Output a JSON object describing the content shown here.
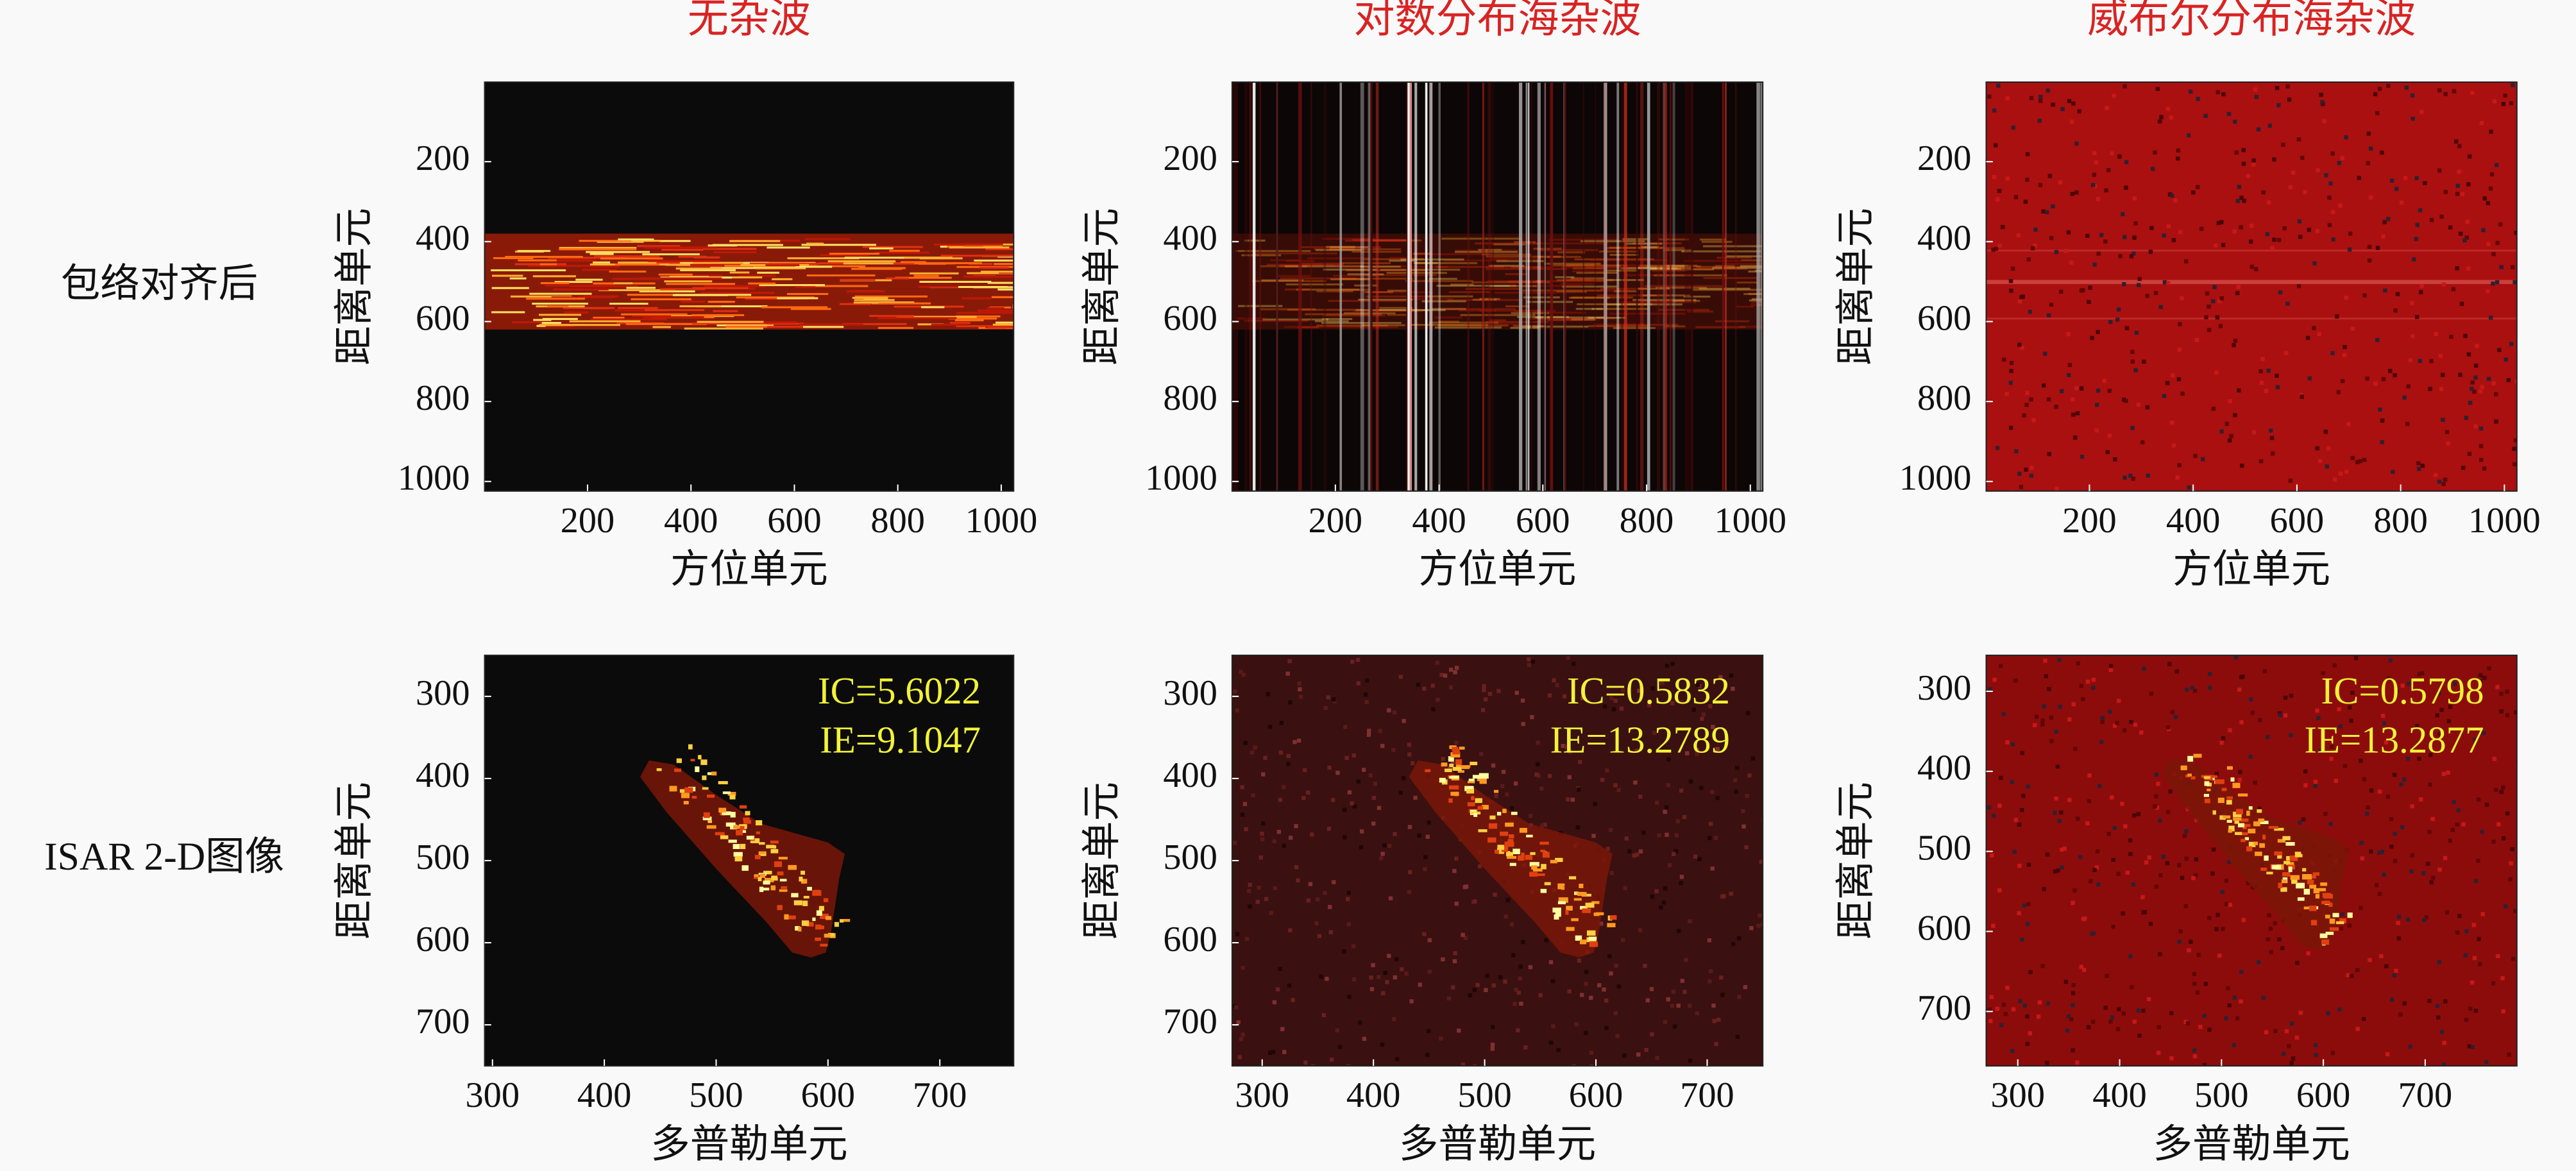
{
  "row_labels": [
    "包络对齐后",
    "ISAR 2-D图像"
  ],
  "title_color": "#d92323",
  "chart_data": [
    {
      "type": "heatmap",
      "title": "无杂波",
      "xlabel": "方位单元",
      "ylabel": "距离单元",
      "xlim": [
        1,
        1024
      ],
      "ylim": [
        1024,
        1
      ],
      "xticks": [
        200,
        400,
        600,
        800,
        1000
      ],
      "yticks": [
        200,
        400,
        600,
        800,
        1000
      ],
      "background": "#0b0b0b"
    },
    {
      "type": "heatmap",
      "title": "对数分布海杂波",
      "xlabel": "方位单元",
      "ylabel": "距离单元",
      "xlim": [
        1,
        1024
      ],
      "ylim": [
        1024,
        1
      ],
      "xticks": [
        200,
        400,
        600,
        800,
        1000
      ],
      "yticks": [
        200,
        400,
        600,
        800,
        1000
      ],
      "background": "#0c0606"
    },
    {
      "type": "heatmap",
      "title": "威布尔分布海杂波",
      "xlabel": "方位单元",
      "ylabel": "距离单元",
      "xlim": [
        1,
        1024
      ],
      "ylim": [
        1024,
        1
      ],
      "xticks": [
        200,
        400,
        600,
        800,
        1000
      ],
      "yticks": [
        200,
        400,
        600,
        800,
        1000
      ],
      "background": "#aa1010"
    },
    {
      "type": "heatmap",
      "xlabel": "多普勒单元",
      "ylabel": "距离单元",
      "xlim": [
        293,
        766
      ],
      "ylim": [
        750,
        250
      ],
      "xticks": [
        300,
        400,
        500,
        600,
        700
      ],
      "yticks": [
        300,
        400,
        500,
        600,
        700
      ],
      "annotations": [
        "IC=5.6022",
        "IE=9.1047"
      ],
      "annotation_color": "#f2f238",
      "background": "#0b0b0b"
    },
    {
      "type": "heatmap",
      "xlabel": "多普勒单元",
      "ylabel": "距离单元",
      "xlim": [
        273,
        750
      ],
      "ylim": [
        750,
        250
      ],
      "xticks": [
        300,
        400,
        500,
        600,
        700
      ],
      "yticks": [
        300,
        400,
        500,
        600,
        700
      ],
      "annotations": [
        "IC=0.5832",
        "IE=13.2789"
      ],
      "annotation_color": "#f2f238",
      "background": "#3a1010"
    },
    {
      "type": "heatmap",
      "xlabel": "多普勒单元",
      "ylabel": "距离单元",
      "xlim": [
        269,
        790
      ],
      "ylim": [
        768,
        255
      ],
      "xticks": [
        300,
        400,
        500,
        600,
        700
      ],
      "yticks": [
        300,
        400,
        500,
        600,
        700
      ],
      "annotations": [
        "IC=0.5798",
        "IE=13.2877"
      ],
      "annotation_color": "#f2f238",
      "background": "#8c0c0c"
    }
  ]
}
